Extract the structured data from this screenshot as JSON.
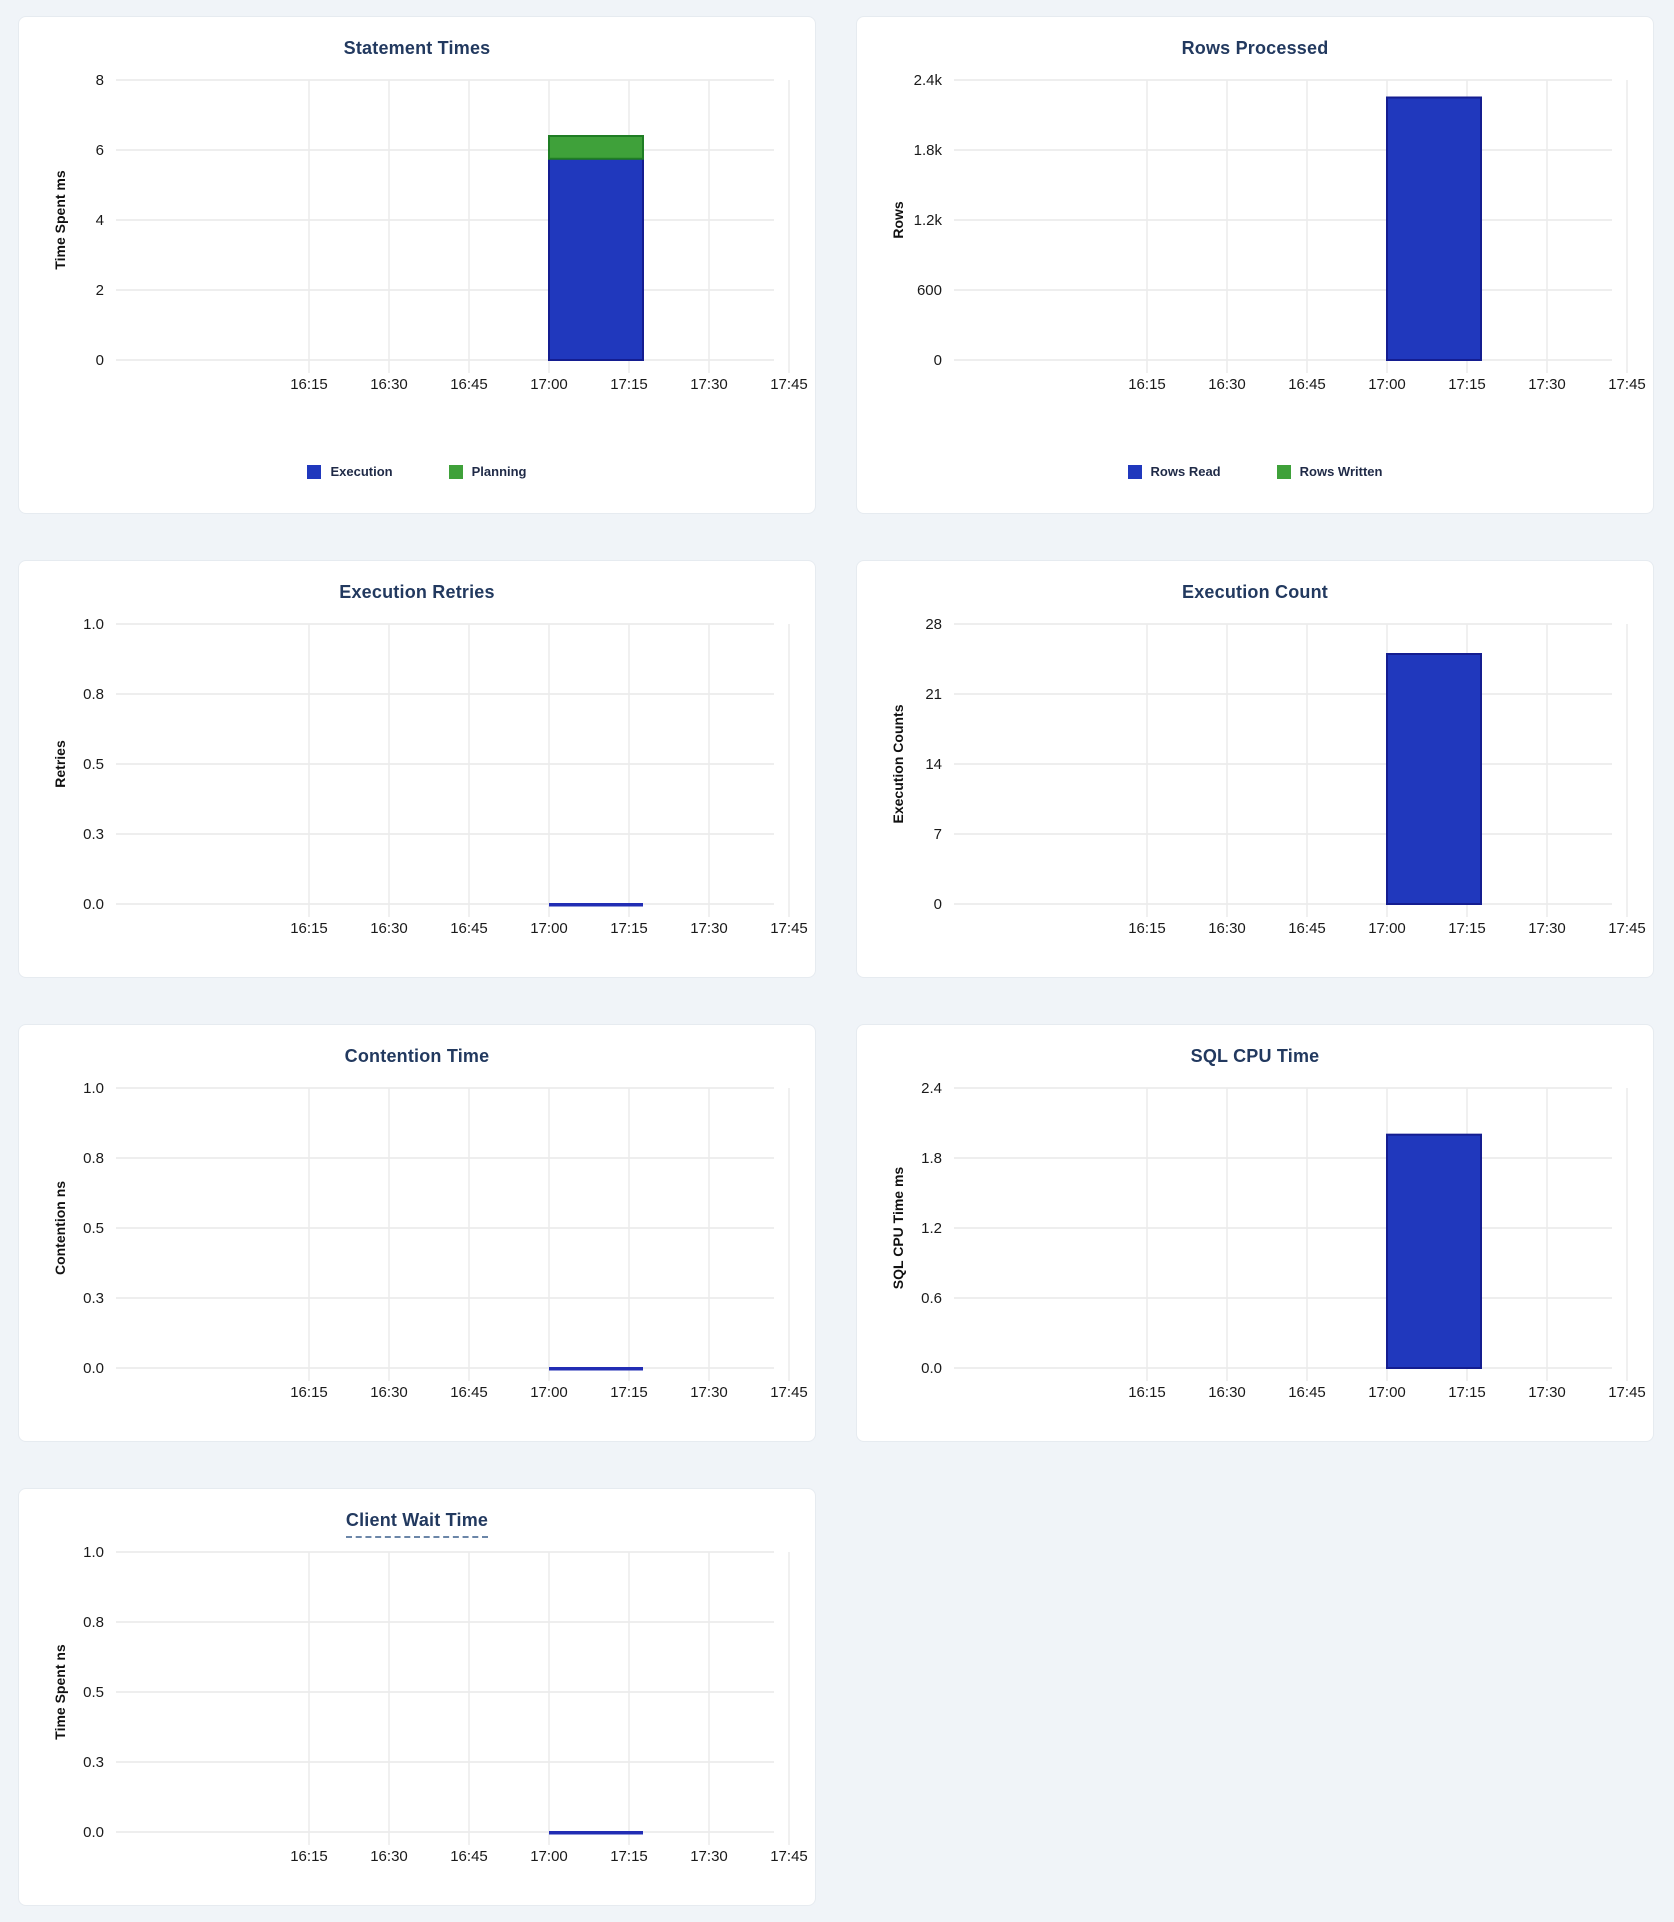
{
  "page": {
    "background": "#f0f4f8",
    "card_background": "#ffffff",
    "title_color": "#22395f"
  },
  "colors": {
    "bar_blue": "#2038bd",
    "bar_blue_border": "#141d90",
    "bar_green": "#3fa13a",
    "bar_green_border": "#1f7d24",
    "flat_line_blue": "#222db4",
    "gridline": "#e9e9e9"
  },
  "chart_data": [
    {
      "type": "bar",
      "title": "Statement Times",
      "title_underlined": false,
      "ylabel": "Time Spent ms",
      "ymax": 8,
      "ytick_labels": [
        "8",
        "6",
        "4",
        "2",
        "0"
      ],
      "xtick_labels": [
        "16:15",
        "16:30",
        "16:45",
        "17:00",
        "17:15",
        "17:30",
        "17:45"
      ],
      "bars": {
        "x_start_label": "17:00",
        "x_start_index": 3,
        "span_intervals": 1.17,
        "segments": [
          {
            "series": "Execution",
            "value": 5.75,
            "color": "#2038bd",
            "border": "#141d90"
          },
          {
            "series": "Planning",
            "value": 0.65,
            "color": "#3fa13a",
            "border": "#1f7d24"
          }
        ]
      },
      "flat_line": null,
      "legend": [
        {
          "label": "Execution",
          "color": "#2038bd"
        },
        {
          "label": "Planning",
          "color": "#3fa13a"
        }
      ]
    },
    {
      "type": "bar",
      "title": "Rows Processed",
      "title_underlined": false,
      "ylabel": "Rows",
      "ymax": 2400,
      "ytick_labels": [
        "2.4k",
        "1.8k",
        "1.2k",
        "600",
        "0"
      ],
      "xtick_labels": [
        "16:15",
        "16:30",
        "16:45",
        "17:00",
        "17:15",
        "17:30",
        "17:45"
      ],
      "bars": {
        "x_start_label": "17:00",
        "x_start_index": 3,
        "span_intervals": 1.17,
        "segments": [
          {
            "series": "Rows Read",
            "value": 2250,
            "color": "#2038bd",
            "border": "#141d90"
          },
          {
            "series": "Rows Written",
            "value": 0,
            "color": "#3fa13a",
            "border": "#1f7d24"
          }
        ]
      },
      "flat_line": null,
      "legend": [
        {
          "label": "Rows Read",
          "color": "#2038bd"
        },
        {
          "label": "Rows Written",
          "color": "#3fa13a"
        }
      ]
    },
    {
      "type": "line",
      "title": "Execution Retries",
      "title_underlined": false,
      "ylabel": "Retries",
      "ymax": 1.0,
      "ytick_labels": [
        "1.0",
        "0.8",
        "0.5",
        "0.3",
        "0.0"
      ],
      "xtick_labels": [
        "16:15",
        "16:30",
        "16:45",
        "17:00",
        "17:15",
        "17:30",
        "17:45"
      ],
      "bars": null,
      "flat_line": {
        "value": 0,
        "x_start_label": "17:00",
        "x_start_index": 3,
        "span_intervals": 1.17,
        "color": "#222db4"
      },
      "legend": null
    },
    {
      "type": "bar",
      "title": "Execution Count",
      "title_underlined": false,
      "ylabel": "Execution Counts",
      "ymax": 28,
      "ytick_labels": [
        "28",
        "21",
        "14",
        "7",
        "0"
      ],
      "xtick_labels": [
        "16:15",
        "16:30",
        "16:45",
        "17:00",
        "17:15",
        "17:30",
        "17:45"
      ],
      "bars": {
        "x_start_label": "17:00",
        "x_start_index": 3,
        "span_intervals": 1.17,
        "segments": [
          {
            "value": 25,
            "color": "#2038bd",
            "border": "#141d90"
          }
        ]
      },
      "flat_line": null,
      "legend": null
    },
    {
      "type": "line",
      "title": "Contention Time",
      "title_underlined": false,
      "ylabel": "Contention ns",
      "ymax": 1.0,
      "ytick_labels": [
        "1.0",
        "0.8",
        "0.5",
        "0.3",
        "0.0"
      ],
      "xtick_labels": [
        "16:15",
        "16:30",
        "16:45",
        "17:00",
        "17:15",
        "17:30",
        "17:45"
      ],
      "bars": null,
      "flat_line": {
        "value": 0,
        "x_start_label": "17:00",
        "x_start_index": 3,
        "span_intervals": 1.17,
        "color": "#222db4"
      },
      "legend": null
    },
    {
      "type": "bar",
      "title": "SQL CPU Time",
      "title_underlined": false,
      "ylabel": "SQL CPU Time ms",
      "ymax": 2.4,
      "ytick_labels": [
        "2.4",
        "1.8",
        "1.2",
        "0.6",
        "0.0"
      ],
      "xtick_labels": [
        "16:15",
        "16:30",
        "16:45",
        "17:00",
        "17:15",
        "17:30",
        "17:45"
      ],
      "bars": {
        "x_start_label": "17:00",
        "x_start_index": 3,
        "span_intervals": 1.17,
        "segments": [
          {
            "value": 2.0,
            "color": "#2038bd",
            "border": "#141d90"
          }
        ]
      },
      "flat_line": null,
      "legend": null
    },
    {
      "type": "line",
      "title": "Client Wait Time",
      "title_underlined": true,
      "ylabel": "Time Spent ns",
      "ymax": 1.0,
      "ytick_labels": [
        "1.0",
        "0.8",
        "0.5",
        "0.3",
        "0.0"
      ],
      "xtick_labels": [
        "16:15",
        "16:30",
        "16:45",
        "17:00",
        "17:15",
        "17:30",
        "17:45"
      ],
      "bars": null,
      "flat_line": {
        "value": 0,
        "x_start_label": "17:00",
        "x_start_index": 3,
        "span_intervals": 1.17,
        "color": "#222db4"
      },
      "legend": null
    }
  ]
}
